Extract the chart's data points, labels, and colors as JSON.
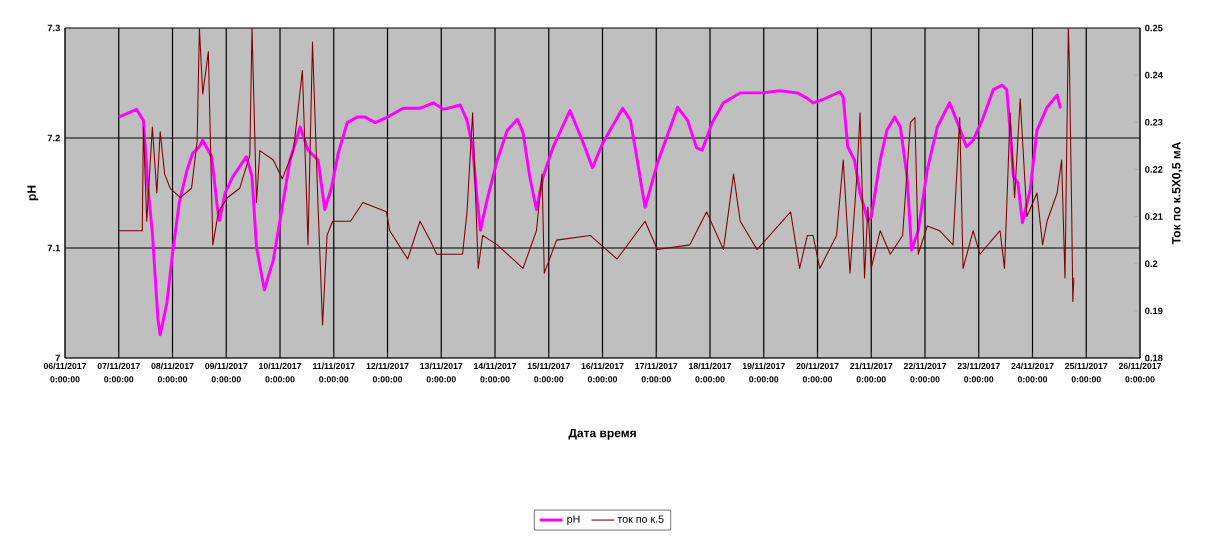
{
  "chart_data": {
    "type": "line",
    "xlabel": "Дата время",
    "ylabel": "pH",
    "y2label": "Ток по к.5Х0,5 мА",
    "xlim": [
      "2017-11-06",
      "2017-11-26"
    ],
    "xticks": [
      {
        "value": "2017-11-06",
        "label": "06/11/2017 0:00:00"
      },
      {
        "value": "2017-11-07",
        "label": "07/11/2017 0:00:00"
      },
      {
        "value": "2017-11-08",
        "label": "08/11/2017 0:00:00"
      },
      {
        "value": "2017-11-09",
        "label": "09/11/2017 0:00:00"
      },
      {
        "value": "2017-11-10",
        "label": "10/11/2017 0:00:00"
      },
      {
        "value": "2017-11-11",
        "label": "11/11/2017 0:00:00"
      },
      {
        "value": "2017-11-12",
        "label": "12/11/2017 0:00:00"
      },
      {
        "value": "2017-11-13",
        "label": "13/11/2017 0:00:00"
      },
      {
        "value": "2017-11-14",
        "label": "14/11/2017 0:00:00"
      },
      {
        "value": "2017-11-15",
        "label": "15/11/2017 0:00:00"
      },
      {
        "value": "2017-11-16",
        "label": "16/11/2017 0:00:00"
      },
      {
        "value": "2017-11-17",
        "label": "17/11/2017 0:00:00"
      },
      {
        "value": "2017-11-18",
        "label": "18/11/2017 0:00:00"
      },
      {
        "value": "2017-11-19",
        "label": "19/11/2017 0:00:00"
      },
      {
        "value": "2017-11-20",
        "label": "20/11/2017 0:00:00"
      },
      {
        "value": "2017-11-21",
        "label": "21/11/2017 0:00:00"
      },
      {
        "value": "2017-11-22",
        "label": "22/11/2017 0:00:00"
      },
      {
        "value": "2017-11-23",
        "label": "23/11/2017 0:00:00"
      },
      {
        "value": "2017-11-24",
        "label": "24/11/2017 0:00:00"
      },
      {
        "value": "2017-11-25",
        "label": "25/11/2017 0:00:00"
      },
      {
        "value": "2017-11-26",
        "label": "26/11/2017 0:00:00"
      }
    ],
    "ylim": [
      7,
      7.3
    ],
    "yticks": [
      7,
      7.1,
      7.2,
      7.3
    ],
    "y2lim": [
      0.18,
      0.25
    ],
    "y2ticks": [
      0.18,
      0.19,
      0.2,
      0.21,
      0.22,
      0.23,
      0.24,
      0.25
    ],
    "grid": true,
    "legend": "bottom",
    "marker": "none",
    "series": [
      {
        "name": "pH",
        "color": "#ff00ff",
        "x": [
          "2017-11-07T00:00",
          "2017-11-07T08:00",
          "2017-11-07T11:00",
          "2017-11-07T13:00",
          "2017-11-07T15:00",
          "2017-11-07T17:30",
          "2017-11-07T18:30",
          "2017-11-07T21:30",
          "2017-11-08T00:00",
          "2017-11-08T03:00",
          "2017-11-08T06:30",
          "2017-11-08T09:00",
          "2017-11-08T12:00",
          "2017-11-08T13:30",
          "2017-11-08T17:30",
          "2017-11-08T20:00",
          "2017-11-08T21:00",
          "2017-11-08T23:30",
          "2017-11-09T03:00",
          "2017-11-09T09:00",
          "2017-11-09T11:30",
          "2017-11-09T13:30",
          "2017-11-09T17:00",
          "2017-11-09T21:00",
          "2017-11-10T01:00",
          "2017-11-10T04:30",
          "2017-11-10T09:00",
          "2017-11-10T12:30",
          "2017-11-10T17:00",
          "2017-11-10T20:00",
          "2017-11-10T23:00",
          "2017-11-11T02:00",
          "2017-11-11T06:00",
          "2017-11-11T10:30",
          "2017-11-11T14:00",
          "2017-11-11T18:30",
          "2017-11-12T00:00",
          "2017-11-12T07:00",
          "2017-11-12T14:30",
          "2017-11-12T20:30",
          "2017-11-13T01:00",
          "2017-11-13T08:30",
          "2017-11-13T11:30",
          "2017-11-13T14:00",
          "2017-11-13T16:00",
          "2017-11-13T17:30",
          "2017-11-13T20:30",
          "2017-11-14T01:00",
          "2017-11-14T05:30",
          "2017-11-14T10:00",
          "2017-11-14T12:30",
          "2017-11-14T15:30",
          "2017-11-14T18:30",
          "2017-11-14T21:30",
          "2017-11-15T02:00",
          "2017-11-15T09:30",
          "2017-11-15T15:30",
          "2017-11-15T19:30",
          "2017-11-16T00:00",
          "2017-11-16T09:00",
          "2017-11-16T12:30",
          "2017-11-16T15:30",
          "2017-11-16T19:00",
          "2017-11-17T00:30",
          "2017-11-17T09:30",
          "2017-11-17T14:00",
          "2017-11-17T18:00",
          "2017-11-17T20:30",
          "2017-11-18T01:00",
          "2017-11-18T06:00",
          "2017-11-18T13:30",
          "2017-11-18T23:30",
          "2017-11-19T07:00",
          "2017-11-19T15:00",
          "2017-11-19T19:30",
          "2017-11-19T22:00",
          "2017-11-20T02:30",
          "2017-11-20T10:00",
          "2017-11-20T11:30",
          "2017-11-20T13:30",
          "2017-11-20T16:30",
          "2017-11-20T19:00",
          "2017-11-20T22:30",
          "2017-11-21T00:00",
          "2017-11-21T04:00",
          "2017-11-21T07:00",
          "2017-11-21T10:30",
          "2017-11-21T13:00",
          "2017-11-21T16:00",
          "2017-11-21T18:00",
          "2017-11-21T21:00",
          "2017-11-22T01:00",
          "2017-11-22T05:30",
          "2017-11-22T11:00",
          "2017-11-22T14:30",
          "2017-11-22T18:30",
          "2017-11-22T21:30",
          "2017-11-23T01:30",
          "2017-11-23T06:30",
          "2017-11-23T10:30",
          "2017-11-23T12:30",
          "2017-11-23T14:00",
          "2017-11-23T15:30",
          "2017-11-23T17:30",
          "2017-11-23T19:30",
          "2017-11-23T23:00",
          "2017-11-24T02:00",
          "2017-11-24T06:30",
          "2017-11-24T11:00",
          "2017-11-24T12:30"
        ],
        "values": [
          7.219,
          7.226,
          7.216,
          7.156,
          7.114,
          7.035,
          7.021,
          7.05,
          7.095,
          7.141,
          7.171,
          7.186,
          7.192,
          7.198,
          7.183,
          7.137,
          7.125,
          7.15,
          7.165,
          7.183,
          7.165,
          7.101,
          7.062,
          7.089,
          7.137,
          7.18,
          7.21,
          7.189,
          7.18,
          7.135,
          7.155,
          7.186,
          7.214,
          7.219,
          7.219,
          7.214,
          7.219,
          7.227,
          7.227,
          7.232,
          7.226,
          7.23,
          7.216,
          7.192,
          7.144,
          7.116,
          7.144,
          7.18,
          7.207,
          7.217,
          7.205,
          7.165,
          7.135,
          7.165,
          7.192,
          7.225,
          7.195,
          7.173,
          7.195,
          7.227,
          7.216,
          7.18,
          7.137,
          7.177,
          7.228,
          7.216,
          7.191,
          7.189,
          7.214,
          7.232,
          7.241,
          7.241,
          7.243,
          7.241,
          7.236,
          7.232,
          7.235,
          7.242,
          7.237,
          7.192,
          7.18,
          7.15,
          7.125,
          7.128,
          7.18,
          7.207,
          7.219,
          7.21,
          7.165,
          7.098,
          7.116,
          7.171,
          7.21,
          7.232,
          7.214,
          7.192,
          7.198,
          7.216,
          7.244,
          7.248,
          7.244,
          7.207,
          7.165,
          7.159,
          7.123,
          7.153,
          7.207,
          7.228,
          7.239,
          7.227
        ]
      },
      {
        "name": "ток по к.5",
        "color": "#800000",
        "axis": "y2",
        "x": [
          "2017-11-07T00:00",
          "2017-11-07T10:30",
          "2017-11-07T11:00",
          "2017-11-07T12:30",
          "2017-11-07T15:00",
          "2017-11-07T17:00",
          "2017-11-07T18:30",
          "2017-11-07T20:30",
          "2017-11-07T23:00",
          "2017-11-08T03:30",
          "2017-11-08T08:30",
          "2017-11-08T11:00",
          "2017-11-08T12:00",
          "2017-11-08T13:30",
          "2017-11-08T16:00",
          "2017-11-08T18:00",
          "2017-11-08T20:30",
          "2017-11-09T00:30",
          "2017-11-09T06:00",
          "2017-11-09T10:30",
          "2017-11-09T11:30",
          "2017-11-09T13:30",
          "2017-11-09T15:00",
          "2017-11-09T21:00",
          "2017-11-10T01:00",
          "2017-11-10T06:00",
          "2017-11-10T10:00",
          "2017-11-10T12:00",
          "2017-11-10T12:30",
          "2017-11-10T14:30",
          "2017-11-10T17:00",
          "2017-11-10T19:00",
          "2017-11-10T21:00",
          "2017-11-10T23:30",
          "2017-11-11T07:30",
          "2017-11-11T13:00",
          "2017-11-11T23:30",
          "2017-11-12T01:00",
          "2017-11-12T09:00",
          "2017-11-12T14:30",
          "2017-11-12T19:00",
          "2017-11-12T22:00",
          "2017-11-13T09:30",
          "2017-11-13T11:30",
          "2017-11-13T14:00",
          "2017-11-13T16:30",
          "2017-11-13T18:30",
          "2017-11-14T01:00",
          "2017-11-14T12:30",
          "2017-11-14T18:30",
          "2017-11-14T21:00",
          "2017-11-14T22:00",
          "2017-11-15T03:30",
          "2017-11-15T18:30",
          "2017-11-16T06:30",
          "2017-11-16T19:00",
          "2017-11-17T00:30",
          "2017-11-17T15:00",
          "2017-11-17T22:30",
          "2017-11-18T06:00",
          "2017-11-18T10:30",
          "2017-11-18T13:30",
          "2017-11-18T21:00",
          "2017-11-19T12:00",
          "2017-11-19T16:00",
          "2017-11-19T19:30",
          "2017-11-19T22:00",
          "2017-11-20T01:00",
          "2017-11-20T08:30",
          "2017-11-20T11:30",
          "2017-11-20T14:30",
          "2017-11-20T17:30",
          "2017-11-20T19:00",
          "2017-11-20T21:00",
          "2017-11-20T22:30",
          "2017-11-21T00:00",
          "2017-11-21T04:00",
          "2017-11-21T08:30",
          "2017-11-21T14:00",
          "2017-11-21T17:30",
          "2017-11-21T19:30",
          "2017-11-21T21:00",
          "2017-11-22T01:00",
          "2017-11-22T06:30",
          "2017-11-22T12:30",
          "2017-11-22T15:30",
          "2017-11-22T17:00",
          "2017-11-22T21:30",
          "2017-11-23T00:30",
          "2017-11-23T09:30",
          "2017-11-23T11:30",
          "2017-11-23T14:00",
          "2017-11-23T16:00",
          "2017-11-23T18:30",
          "2017-11-23T21:30",
          "2017-11-24T02:00",
          "2017-11-24T04:30",
          "2017-11-24T06:30",
          "2017-11-24T11:00",
          "2017-11-24T13:00",
          "2017-11-24T14:30",
          "2017-11-24T16:00",
          "2017-11-24T16:30",
          "2017-11-24T17:30",
          "2017-11-24T18:00",
          "2017-11-24T18:30"
        ],
        "values": [
          0.207,
          0.207,
          0.229,
          0.209,
          0.229,
          0.215,
          0.228,
          0.219,
          0.216,
          0.214,
          0.216,
          0.226,
          0.25,
          0.236,
          0.245,
          0.204,
          0.211,
          0.214,
          0.216,
          0.223,
          0.25,
          0.213,
          0.224,
          0.222,
          0.218,
          0.224,
          0.241,
          0.212,
          0.204,
          0.247,
          0.212,
          0.187,
          0.206,
          0.209,
          0.209,
          0.213,
          0.211,
          0.207,
          0.201,
          0.209,
          0.205,
          0.202,
          0.202,
          0.211,
          0.232,
          0.199,
          0.206,
          0.204,
          0.199,
          0.207,
          0.219,
          0.198,
          0.205,
          0.206,
          0.201,
          0.209,
          0.203,
          0.204,
          0.211,
          0.203,
          0.219,
          0.209,
          0.203,
          0.211,
          0.199,
          0.206,
          0.206,
          0.199,
          0.206,
          0.222,
          0.198,
          0.218,
          0.232,
          0.197,
          0.212,
          0.199,
          0.207,
          0.202,
          0.206,
          0.23,
          0.231,
          0.202,
          0.208,
          0.207,
          0.204,
          0.231,
          0.199,
          0.207,
          0.202,
          0.207,
          0.199,
          0.232,
          0.214,
          0.235,
          0.21,
          0.215,
          0.204,
          0.209,
          0.215,
          0.222,
          0.197,
          0.25,
          0.242,
          0.211,
          0.192,
          0.197
        ]
      }
    ]
  }
}
